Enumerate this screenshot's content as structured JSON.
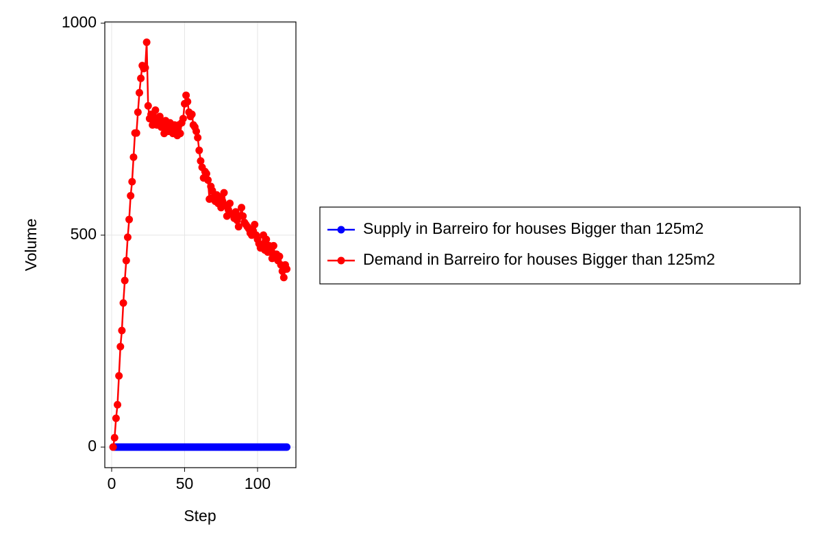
{
  "chart_data": {
    "type": "line",
    "x_label": "Step",
    "y_label": "Volume",
    "xlim": [
      -4.7,
      126.3
    ],
    "ylim": [
      -48.5,
      1003
    ],
    "xticks": [
      0,
      50,
      100
    ],
    "yticks": [
      0,
      500,
      1000
    ],
    "grid": true,
    "legend": "right",
    "markers": true,
    "x": [
      1,
      2,
      3,
      4,
      5,
      6,
      7,
      8,
      9,
      10,
      11,
      12,
      13,
      14,
      15,
      16,
      17,
      18,
      19,
      20,
      21,
      22,
      23,
      24,
      25,
      26,
      27,
      28,
      29,
      30,
      31,
      32,
      33,
      34,
      35,
      36,
      37,
      38,
      39,
      40,
      41,
      42,
      43,
      44,
      45,
      46,
      47,
      48,
      49,
      50,
      51,
      52,
      53,
      54,
      55,
      56,
      57,
      58,
      59,
      60,
      61,
      62,
      63,
      64,
      65,
      66,
      67,
      68,
      69,
      70,
      71,
      72,
      73,
      74,
      75,
      76,
      77,
      78,
      79,
      80,
      81,
      82,
      83,
      84,
      85,
      86,
      87,
      88,
      89,
      90,
      91,
      92,
      93,
      94,
      95,
      96,
      97,
      98,
      99,
      100,
      101,
      102,
      103,
      104,
      105,
      106,
      107,
      108,
      109,
      110,
      111,
      112,
      113,
      114,
      115,
      116,
      117,
      118,
      119,
      120
    ],
    "series": [
      {
        "name": "Supply in Barreiro for houses Bigger than 125m2",
        "color": "#0000ff",
        "values": [
          0,
          0,
          0,
          0,
          0,
          0,
          0,
          0,
          0,
          0,
          0,
          0,
          0,
          0,
          0,
          0,
          0,
          0,
          0,
          0,
          0,
          0,
          0,
          0,
          0,
          0,
          0,
          0,
          0,
          0,
          0,
          0,
          0,
          0,
          0,
          0,
          0,
          0,
          0,
          0,
          0,
          0,
          0,
          0,
          0,
          0,
          0,
          0,
          0,
          0,
          0,
          0,
          0,
          0,
          0,
          0,
          0,
          0,
          0,
          0,
          0,
          0,
          0,
          0,
          0,
          0,
          0,
          0,
          0,
          0,
          0,
          0,
          0,
          0,
          0,
          0,
          0,
          0,
          0,
          0,
          0,
          0,
          0,
          0,
          0,
          0,
          0,
          0,
          0,
          0,
          0,
          0,
          0,
          0,
          0,
          0,
          0,
          0,
          0,
          0,
          0,
          0,
          0,
          0,
          0,
          0,
          0,
          0,
          0,
          0,
          0,
          0,
          0,
          0,
          0,
          0,
          0,
          0,
          0,
          0
        ]
      },
      {
        "name": "Demand in Barreiro for houses Bigger than 125m2",
        "color": "#ff0000",
        "values": [
          0,
          22,
          68,
          100,
          168,
          237,
          275,
          340,
          393,
          440,
          495,
          537,
          593,
          626,
          684,
          741,
          741,
          790,
          836,
          870,
          900,
          893,
          895,
          955,
          805,
          775,
          785,
          760,
          770,
          795,
          760,
          770,
          780,
          755,
          765,
          740,
          770,
          755,
          745,
          765,
          750,
          740,
          760,
          750,
          735,
          760,
          740,
          765,
          775,
          810,
          830,
          815,
          790,
          780,
          785,
          760,
          755,
          745,
          730,
          700,
          675,
          660,
          635,
          650,
          645,
          630,
          585,
          615,
          605,
          590,
          580,
          595,
          575,
          590,
          565,
          580,
          600,
          570,
          545,
          560,
          575,
          550,
          550,
          540,
          555,
          535,
          520,
          545,
          565,
          545,
          530,
          525,
          520,
          515,
          505,
          500,
          510,
          525,
          500,
          490,
          480,
          470,
          475,
          500,
          465,
          490,
          460,
          475,
          460,
          445,
          475,
          450,
          455,
          440,
          450,
          430,
          415,
          400,
          430,
          420
        ]
      }
    ]
  }
}
